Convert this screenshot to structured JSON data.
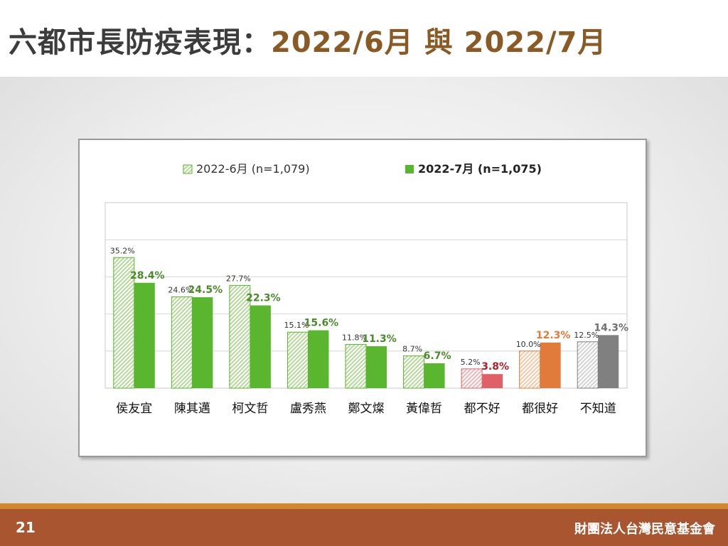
{
  "slide": {
    "title_main": "六都市長防疫表現：",
    "title_date1": "2022/6月",
    "title_join": " 與 ",
    "title_date2": "2022/7月",
    "page_number": "21",
    "organization": "財團法人台灣民意基金會"
  },
  "chart_data": {
    "type": "bar",
    "categories": [
      "侯友宜",
      "陳其邁",
      "柯文哲",
      "盧秀燕",
      "鄭文燦",
      "黃偉哲",
      "都不好",
      "都很好",
      "不知道"
    ],
    "series": [
      {
        "name": "2022-6月 (n=1,079)",
        "values": [
          35.2,
          24.6,
          27.7,
          15.1,
          11.8,
          8.7,
          5.2,
          10.0,
          12.5
        ],
        "labels": [
          "35.2%",
          "24.6%",
          "27.7%",
          "15.1%",
          "11.8%",
          "8.7%",
          "5.2%",
          "10.0%",
          "12.5%"
        ],
        "pattern": "hatched"
      },
      {
        "name": "2022-7月 (n=1,075)",
        "values": [
          28.4,
          24.5,
          22.3,
          15.6,
          11.3,
          6.7,
          3.8,
          12.3,
          14.3
        ],
        "labels": [
          "28.4%",
          "24.5%",
          "22.3%",
          "15.6%",
          "11.3%",
          "6.7%",
          "3.8%",
          "12.3%",
          "14.3%"
        ],
        "pattern": "solid"
      }
    ],
    "category_colors": {
      "default": {
        "light": "#b5d99a",
        "solid": "#5ab52f",
        "label": "#4a8a2a"
      },
      "都不好": {
        "light": "#f0b5b8",
        "solid": "#e06068",
        "label": "#b01e28"
      },
      "都很好": {
        "light": "#f5c9a8",
        "solid": "#e07b3c",
        "label": "#e07b3c"
      },
      "不知道": {
        "light": "#d3d3d3",
        "solid": "#808080",
        "label": "#707070"
      }
    },
    "ylim": [
      0,
      50
    ],
    "grid": true,
    "legend_position": "top"
  }
}
